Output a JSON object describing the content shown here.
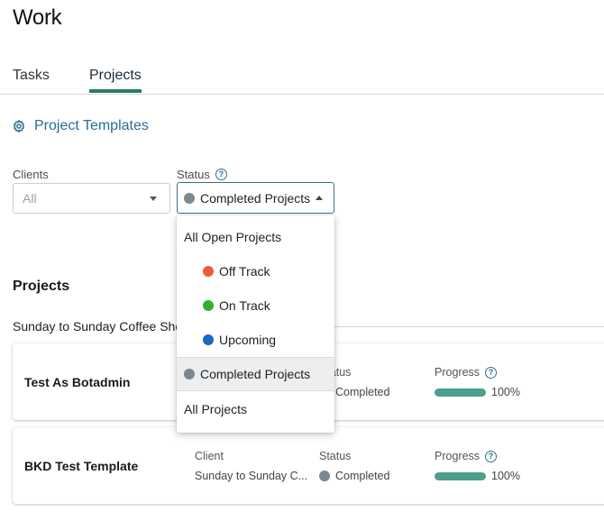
{
  "page": {
    "title": "Work"
  },
  "tabs": [
    {
      "label": "Tasks",
      "active": false
    },
    {
      "label": "Projects",
      "active": true
    }
  ],
  "templates_link": {
    "label": "Project Templates",
    "icon": "gear-icon",
    "color": "#2a6f8f"
  },
  "filters": {
    "clients": {
      "label": "Clients",
      "value": "All"
    },
    "status": {
      "label": "Status",
      "help_icon": "?",
      "value": "Completed Projects",
      "dot_color": "#7c8791"
    }
  },
  "status_dropdown": {
    "options": [
      {
        "label": "All Open Projects",
        "dot": null
      },
      {
        "label": "Off Track",
        "dot": "#ef5a3c"
      },
      {
        "label": "On Track",
        "dot": "#2fb230"
      },
      {
        "label": "Upcoming",
        "dot": "#1c66c4"
      },
      {
        "label": "Completed Projects",
        "dot": "#7c8791",
        "selected": true
      },
      {
        "label": "All Projects",
        "dot": null
      }
    ]
  },
  "projects_section": {
    "title": "Projects",
    "group_title": "Sunday to Sunday Coffee Sho",
    "cards": [
      {
        "name": "Test As Botadmin",
        "client_label": "",
        "client_value": "",
        "status_label": "Status",
        "status_value": "Completed",
        "progress_label": "Progress",
        "progress_text": "100%",
        "progress": 1.0
      },
      {
        "name": "BKD Test Template",
        "client_label": "Client",
        "client_value": "Sunday to Sunday C...",
        "status_label": "Status",
        "status_value": "Completed",
        "progress_label": "Progress",
        "progress_text": "100%",
        "progress": 1.0
      }
    ]
  },
  "colors": {
    "accent": "#2b7a66",
    "link": "#2a6f8f",
    "progress": "#4c9e8e",
    "completed_dot": "#7c8791"
  }
}
